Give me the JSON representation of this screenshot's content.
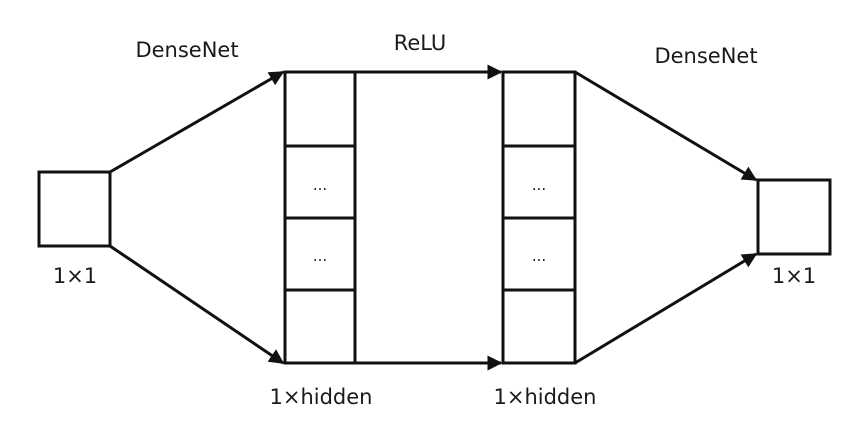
{
  "diagram": {
    "input_node": {
      "label": "1×1"
    },
    "output_node": {
      "label": "1×1"
    },
    "hidden_layer_1": {
      "label": "1×hidden",
      "cells": [
        "",
        "...",
        "...",
        ""
      ]
    },
    "hidden_layer_2": {
      "label": "1×hidden",
      "cells": [
        "",
        "...",
        "...",
        ""
      ]
    },
    "edges": {
      "left": {
        "label": "DenseNet"
      },
      "middle": {
        "label": "ReLU"
      },
      "right": {
        "label": "DenseNet"
      }
    }
  }
}
